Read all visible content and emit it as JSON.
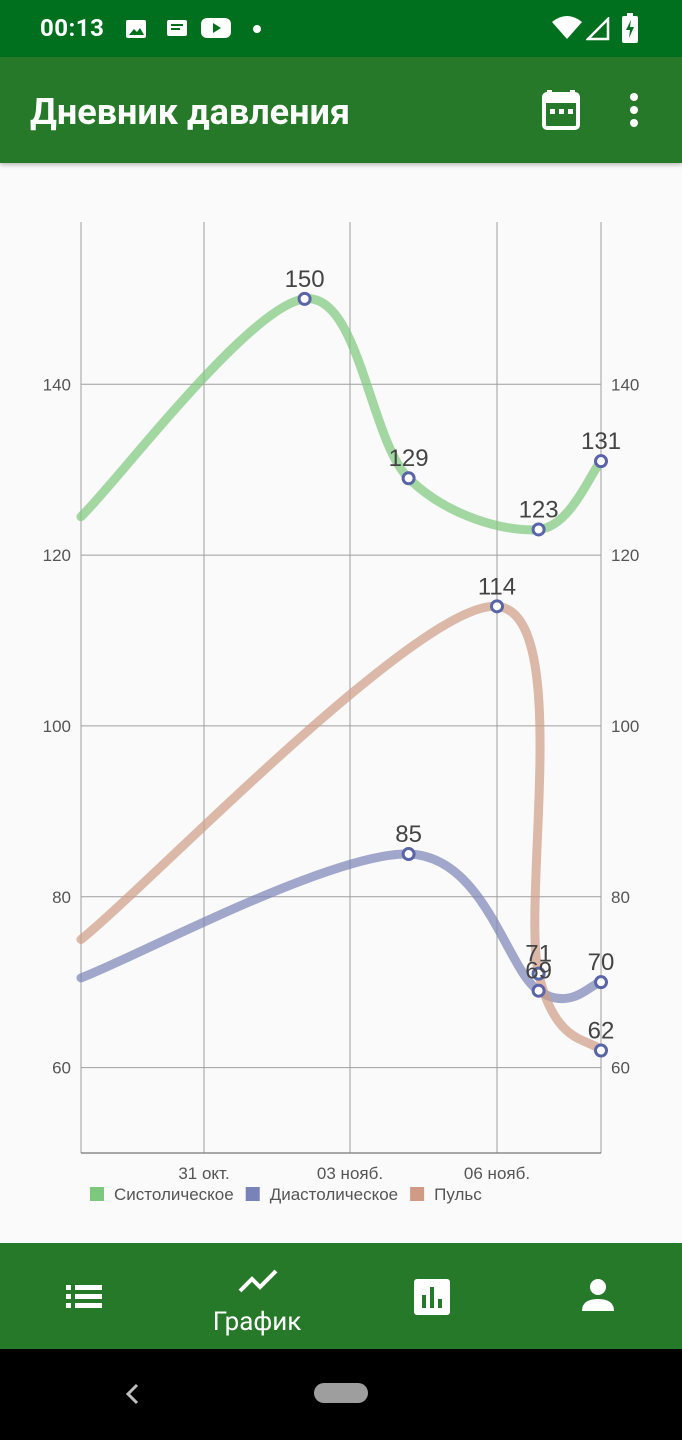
{
  "status_bar": {
    "time": "00:13",
    "icons_left": [
      "image-icon",
      "message-icon",
      "youtube-icon",
      "dot-icon"
    ],
    "icons_right": [
      "wifi-icon",
      "signal-icon",
      "battery-charging-icon"
    ]
  },
  "app_bar": {
    "title": "Дневник давления",
    "actions": [
      "calendar-icon",
      "more-vert-icon"
    ]
  },
  "chart_data": {
    "type": "line",
    "x_tick_labels": [
      "31 окт.",
      "03 нояб.",
      "06 нояб."
    ],
    "y_ticks": [
      60,
      80,
      100,
      120,
      140
    ],
    "ylim": [
      50,
      159
    ],
    "grid": true,
    "legend_position": "bottom-left",
    "series": [
      {
        "name": "Систолическое",
        "color": "#7cc87c",
        "points": [
          [
            0.43,
            150
          ],
          [
            0.63,
            129
          ],
          [
            0.88,
            123
          ],
          [
            1.0,
            131
          ]
        ],
        "start_value": 124.5
      },
      {
        "name": "Диастолическое",
        "color": "#7a83b7",
        "points": [
          [
            0.63,
            85
          ],
          [
            0.88,
            69
          ],
          [
            1.0,
            70
          ]
        ],
        "start_value": 70.5
      },
      {
        "name": "Пульс",
        "color": "#cf9b84",
        "points": [
          [
            0.8,
            114
          ],
          [
            0.88,
            71
          ],
          [
            1.0,
            62
          ]
        ],
        "start_value": 75
      }
    ],
    "annotations": [
      "150",
      "129",
      "123",
      "131",
      "85",
      "69",
      "70",
      "114",
      "71",
      "62"
    ]
  },
  "bottom_nav": {
    "items": [
      {
        "icon": "list-icon",
        "label": ""
      },
      {
        "icon": "chart-line-icon",
        "label": "График",
        "active": true
      },
      {
        "icon": "bar-chart-icon",
        "label": ""
      },
      {
        "icon": "person-icon",
        "label": ""
      }
    ]
  }
}
